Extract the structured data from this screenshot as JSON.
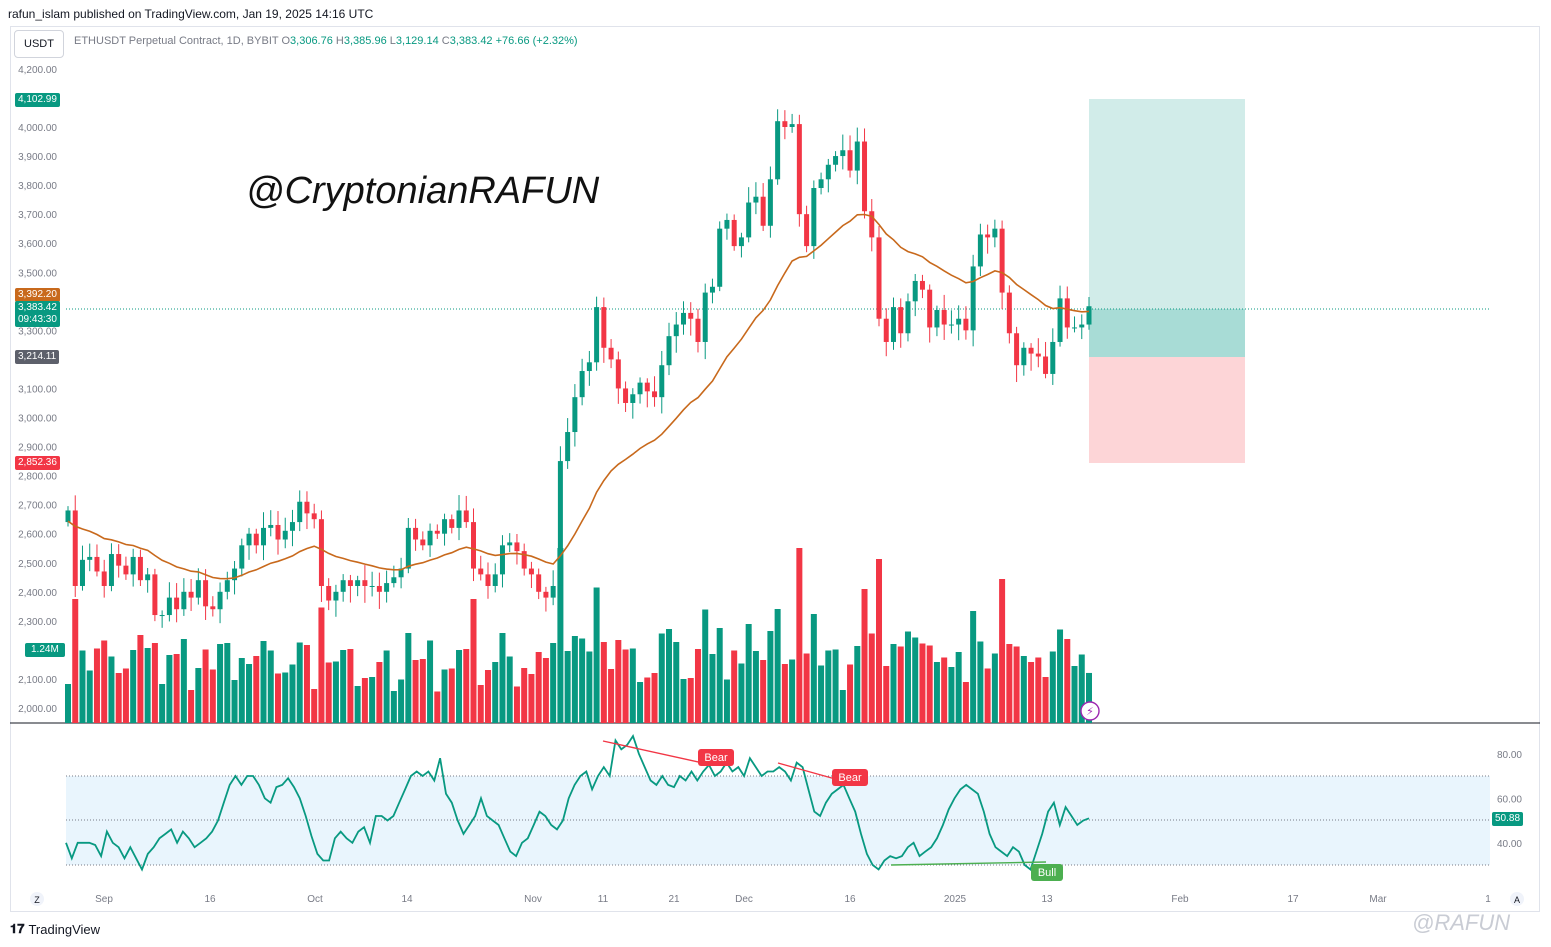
{
  "header": {
    "published": "rafun_islam published on TradingView.com, Jan 19, 2025 14:16 UTC"
  },
  "toolbar": {
    "currency": "USDT"
  },
  "legend": {
    "symbol": "ETHUSDT Perpetual Contract, 1D, BYBIT",
    "o_label": "O",
    "o": "3,306.76",
    "h_label": "H",
    "h": "3,385.96",
    "l_label": "L",
    "l": "3,129.14",
    "c_label": "C",
    "c": "3,383.42",
    "change": "+76.66 (+2.32%)"
  },
  "watermark_text": "@CryptonianRAFUN",
  "price_tags": {
    "target": "4,102.99",
    "ma": "3,392.20",
    "last": "3,383.42",
    "countdown": "09:43:30",
    "entry": "3,214.11",
    "stop": "2,852.36",
    "volume": "1.24M",
    "rsi": "50.88"
  },
  "annotations": {
    "bear1": "Bear",
    "bear2": "Bear",
    "bull": "Bull"
  },
  "footer": {
    "brand": "TradingView",
    "handle": "@RAFUN",
    "z_button": "Z",
    "a_button": "A"
  },
  "colors": {
    "up": "#089981",
    "down": "#f23645",
    "ma": "#c8691c",
    "rsi": "#089981",
    "rsi_band": "#e3f2fd",
    "target_zone": "#b2dfdb",
    "stop_zone": "#fccbcd"
  },
  "chart_data": [
    {
      "type": "candlestick",
      "symbol": "ETHUSDT Perpetual Contract",
      "interval": "1D",
      "ylim": [
        1960,
        4260
      ],
      "y_ticks": [
        "4,200.00",
        "4,000.00",
        "3,900.00",
        "3,800.00",
        "3,700.00",
        "3,600.00",
        "3,500.00",
        "3,300.00",
        "3,100.00",
        "3,000.00",
        "2,900.00",
        "2,800.00",
        "2,700.00",
        "2,600.00",
        "2,500.00",
        "2,400.00",
        "2,300.00",
        "2,100.00",
        "2,000.00"
      ],
      "x_ticks": [
        "Sep",
        "16",
        "Oct",
        "14",
        "Nov",
        "11",
        "21",
        "Dec",
        "16",
        "2025",
        "13",
        "Feb",
        "17",
        "Mar",
        "1"
      ],
      "close": [
        2680,
        2420,
        2510,
        2520,
        2470,
        2420,
        2530,
        2490,
        2460,
        2520,
        2440,
        2460,
        2320,
        2320,
        2380,
        2340,
        2400,
        2380,
        2440,
        2350,
        2340,
        2400,
        2440,
        2480,
        2560,
        2600,
        2560,
        2620,
        2630,
        2580,
        2610,
        2640,
        2710,
        2670,
        2650,
        2420,
        2370,
        2400,
        2440,
        2420,
        2440,
        2420,
        2420,
        2400,
        2430,
        2450,
        2480,
        2620,
        2580,
        2560,
        2610,
        2600,
        2650,
        2620,
        2680,
        2640,
        2480,
        2460,
        2420,
        2460,
        2560,
        2570,
        2540,
        2480,
        2460,
        2400,
        2380,
        2420,
        2850,
        2950,
        3070,
        3160,
        3190,
        3380,
        3240,
        3200,
        3100,
        3050,
        3080,
        3120,
        3090,
        3070,
        3180,
        3280,
        3320,
        3360,
        3340,
        3260,
        3430,
        3450,
        3650,
        3680,
        3590,
        3620,
        3740,
        3760,
        3660,
        3820,
        4020,
        4000,
        4010,
        3700,
        3590,
        3790,
        3820,
        3870,
        3900,
        3920,
        3850,
        3950,
        3710,
        3620,
        3340,
        3260,
        3380,
        3290,
        3400,
        3470,
        3440,
        3310,
        3370,
        3320,
        3320,
        3340,
        3300,
        3520,
        3630,
        3620,
        3650,
        3430,
        3290,
        3180,
        3240,
        3220,
        3210,
        3150,
        3260,
        3410,
        3310,
        3310,
        3320,
        3383
      ],
      "volume_profile": "relative bar heights shown; last 1.24M",
      "ma_label": "3,392.20",
      "position": {
        "target": 4102.99,
        "entry": 3214.11,
        "stop": 2852.36,
        "last": 3383.42
      }
    },
    {
      "type": "line",
      "name": "RSI",
      "ylim": [
        20,
        90
      ],
      "y_ticks": [
        "80.00",
        "60.00",
        "40.00"
      ],
      "bands": [
        70,
        50,
        30
      ],
      "last": 50.88,
      "values": [
        40,
        33,
        40,
        40,
        40,
        39,
        34,
        45,
        40,
        38,
        33,
        38,
        33,
        28,
        35,
        38,
        42,
        44,
        46,
        40,
        45,
        42,
        38,
        40,
        42,
        45,
        50,
        58,
        66,
        70,
        66,
        70,
        70,
        66,
        60,
        58,
        65,
        66,
        69,
        65,
        60,
        52,
        43,
        35,
        32,
        32,
        42,
        45,
        42,
        40,
        45,
        47,
        40,
        52,
        52,
        50,
        52,
        58,
        64,
        70,
        72,
        70,
        72,
        68,
        78,
        62,
        58,
        50,
        44,
        48,
        52,
        60,
        52,
        50,
        48,
        42,
        36,
        34,
        40,
        42,
        48,
        54,
        52,
        48,
        46,
        50,
        60,
        66,
        70,
        72,
        64,
        70,
        74,
        70,
        86,
        82,
        84,
        88,
        80,
        74,
        68,
        66,
        70,
        66,
        65,
        70,
        68,
        72,
        68,
        72,
        75,
        70,
        72,
        76,
        72,
        74,
        70,
        78,
        74,
        70,
        72,
        72,
        74,
        72,
        68,
        76,
        74,
        64,
        54,
        52,
        58,
        62,
        64,
        66,
        60,
        54,
        44,
        35,
        30,
        28,
        32,
        34,
        33,
        34,
        38,
        40,
        34,
        36,
        38,
        42,
        48,
        55,
        60,
        64,
        66,
        64,
        62,
        54,
        44,
        38,
        36,
        34,
        38,
        36,
        30,
        28,
        36,
        44,
        54,
        58,
        48,
        56,
        52,
        48,
        50,
        51
      ],
      "annotations": [
        "Bear",
        "Bear",
        "Bull"
      ]
    }
  ]
}
